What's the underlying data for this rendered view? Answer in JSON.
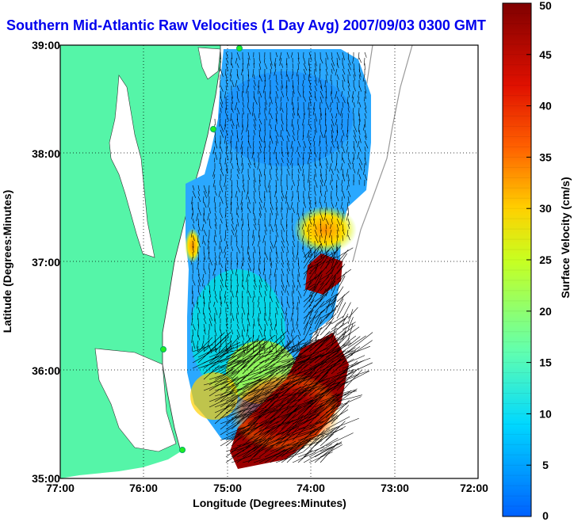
{
  "title": "Southern Mid-Atlantic Raw Velocities (1 Day Avg) 2007/09/03 0300 GMT",
  "map": {
    "xlabel": "Longitude (Degrees:Minutes)",
    "ylabel": "Latitude (Degrees:Minutes)",
    "x_ticks": [
      "77:00",
      "76:00",
      "75:00",
      "74:00",
      "73:00",
      "72:00"
    ],
    "y_ticks": [
      "39:00",
      "38:00",
      "37:00",
      "36:00",
      "35:00"
    ],
    "lon_range": [
      -77,
      -72
    ],
    "lat_range": [
      35,
      39
    ],
    "land_color": "#55f5a8",
    "grid": "dotted"
  },
  "colorbar": {
    "label": "Surface Velocity (cm/s)",
    "ticks": [
      "50",
      "45",
      "40",
      "35",
      "30",
      "25",
      "20",
      "15",
      "10",
      "5",
      "0"
    ],
    "range": [
      0,
      50
    ],
    "colors": [
      "#0060ff",
      "#00d8ff",
      "#60ffb0",
      "#c8ff20",
      "#ffd000",
      "#ff6000",
      "#e01000",
      "#800000"
    ]
  },
  "chart_data": {
    "type": "vector-field",
    "title": "Southern Mid-Atlantic Raw Velocities (1 Day Avg) 2007/09/03 0300 GMT",
    "xlabel": "Longitude (Degrees:Minutes)",
    "ylabel": "Latitude (Degrees:Minutes)",
    "xlim": [
      -77,
      -72
    ],
    "ylim": [
      35,
      39
    ],
    "color_scale_label": "Surface Velocity (cm/s)",
    "color_scale_range": [
      0,
      50
    ]
  }
}
